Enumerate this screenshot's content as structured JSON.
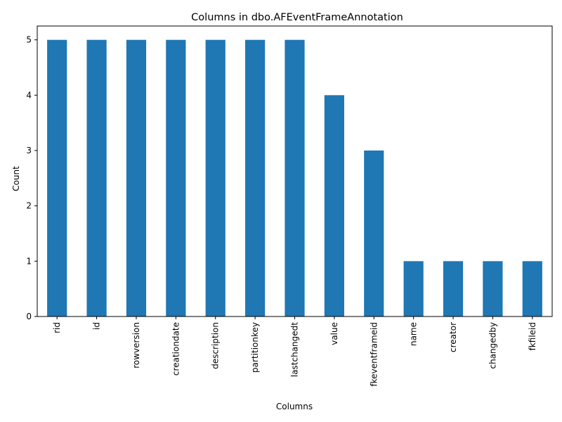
{
  "chart_data": {
    "type": "bar",
    "title": "Columns in dbo.AFEventFrameAnnotation",
    "xlabel": "Columns",
    "ylabel": "Count",
    "categories": [
      "rid",
      "id",
      "rowversion",
      "creationdate",
      "description",
      "partitionkey",
      "lastchangedt",
      "value",
      "fkeventframeid",
      "name",
      "creator",
      "changedby",
      "fkfileid"
    ],
    "values": [
      5,
      5,
      5,
      5,
      5,
      5,
      5,
      4,
      3,
      1,
      1,
      1,
      1
    ],
    "ylim": [
      0,
      5.25
    ],
    "yticks": [
      0,
      1,
      2,
      3,
      4,
      5
    ],
    "bar_color": "#1f77b4",
    "grid": false,
    "legend": "none"
  }
}
